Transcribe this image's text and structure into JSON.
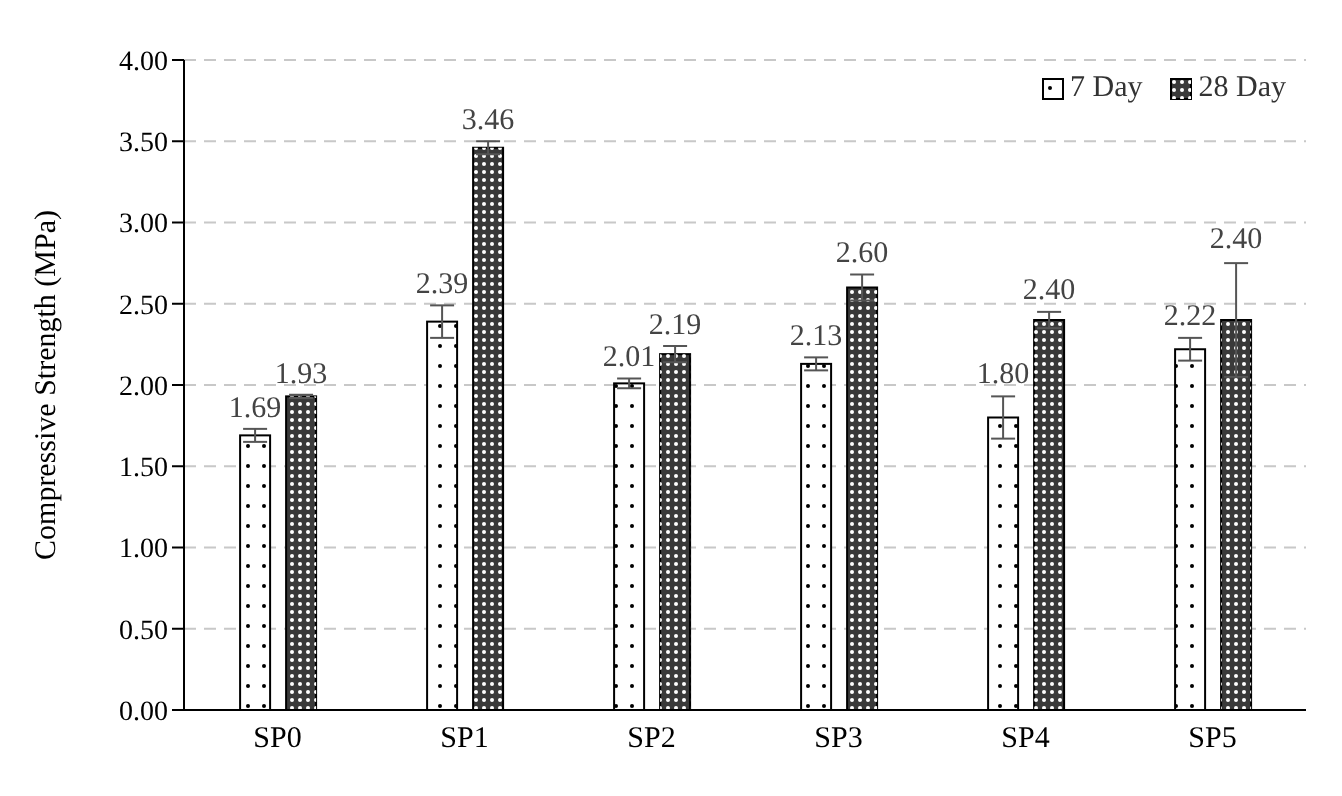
{
  "chart_data": {
    "type": "bar",
    "ylabel": "Compressive Strength (MPa)",
    "categories": [
      "SP0",
      "SP1",
      "SP2",
      "SP3",
      "SP4",
      "SP5"
    ],
    "series": [
      {
        "name": "7 Day",
        "color": "#ffffff",
        "values": [
          1.69,
          2.39,
          2.01,
          2.13,
          1.8,
          2.22
        ],
        "errors": [
          0.04,
          0.1,
          0.03,
          0.04,
          0.13,
          0.07
        ],
        "value_labels": [
          "1.69",
          "2.39",
          "2.01",
          "2.13",
          "1.80",
          "2.22"
        ]
      },
      {
        "name": "28 Day",
        "color": "#3a3a3a",
        "values": [
          1.93,
          3.46,
          2.19,
          2.6,
          2.4,
          2.4
        ],
        "errors": [
          0.01,
          0.04,
          0.05,
          0.08,
          0.05,
          0.35
        ],
        "value_labels": [
          "1.93",
          "3.46",
          "2.19",
          "2.60",
          "2.40",
          "2.40"
        ]
      }
    ],
    "ylim": [
      0,
      4
    ],
    "yticks": [
      {
        "value": 0,
        "label": "0.00"
      },
      {
        "value": 0.5,
        "label": "0.50"
      },
      {
        "value": 1,
        "label": "1.00"
      },
      {
        "value": 1.5,
        "label": "1.50"
      },
      {
        "value": 2,
        "label": "2.00"
      },
      {
        "value": 2.5,
        "label": "2.50"
      },
      {
        "value": 3,
        "label": "3.00"
      },
      {
        "value": 3.5,
        "label": "3.50"
      },
      {
        "value": 4,
        "label": "4.00"
      }
    ],
    "grid": "y",
    "legend": "top right"
  }
}
